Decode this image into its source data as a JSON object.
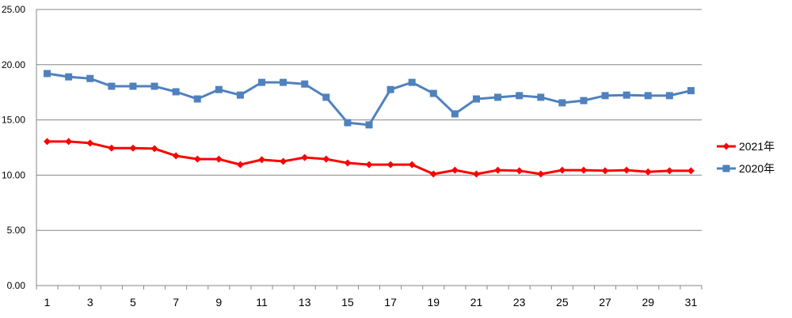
{
  "chart_data": {
    "type": "line",
    "title": "",
    "xlabel": "",
    "ylabel": "",
    "x": [
      1,
      2,
      3,
      4,
      5,
      6,
      7,
      8,
      9,
      10,
      11,
      12,
      13,
      14,
      15,
      16,
      17,
      18,
      19,
      20,
      21,
      22,
      23,
      24,
      25,
      26,
      27,
      28,
      29,
      30,
      31
    ],
    "x_tick_labels": [
      "1",
      "3",
      "5",
      "7",
      "9",
      "11",
      "13",
      "15",
      "17",
      "19",
      "21",
      "23",
      "25",
      "27",
      "29",
      "31"
    ],
    "y_tick_labels": [
      "0.00",
      "5.00",
      "10.00",
      "15.00",
      "20.00",
      "25.00"
    ],
    "ylim": [
      0,
      25
    ],
    "grid": "horizontal",
    "legend_position": "right",
    "series": [
      {
        "name": "2021年",
        "color": "#ff0000",
        "marker": "diamond",
        "values": [
          13.05,
          13.05,
          12.9,
          12.45,
          12.45,
          12.4,
          11.75,
          11.45,
          11.45,
          10.95,
          11.4,
          11.25,
          11.6,
          11.45,
          11.1,
          10.95,
          10.95,
          10.95,
          10.1,
          10.45,
          10.1,
          10.45,
          10.4,
          10.1,
          10.45,
          10.45,
          10.4,
          10.45,
          10.3,
          10.4,
          10.4
        ]
      },
      {
        "name": "2020年",
        "color": "#4f81bd",
        "marker": "square",
        "values": [
          19.2,
          18.9,
          18.75,
          18.05,
          18.05,
          18.05,
          17.55,
          16.9,
          17.75,
          17.25,
          18.4,
          18.4,
          18.25,
          17.05,
          14.75,
          14.55,
          17.75,
          18.4,
          17.4,
          15.55,
          16.9,
          17.05,
          17.2,
          17.05,
          16.55,
          16.75,
          17.2,
          17.25,
          17.2,
          17.2,
          17.65
        ]
      }
    ]
  }
}
